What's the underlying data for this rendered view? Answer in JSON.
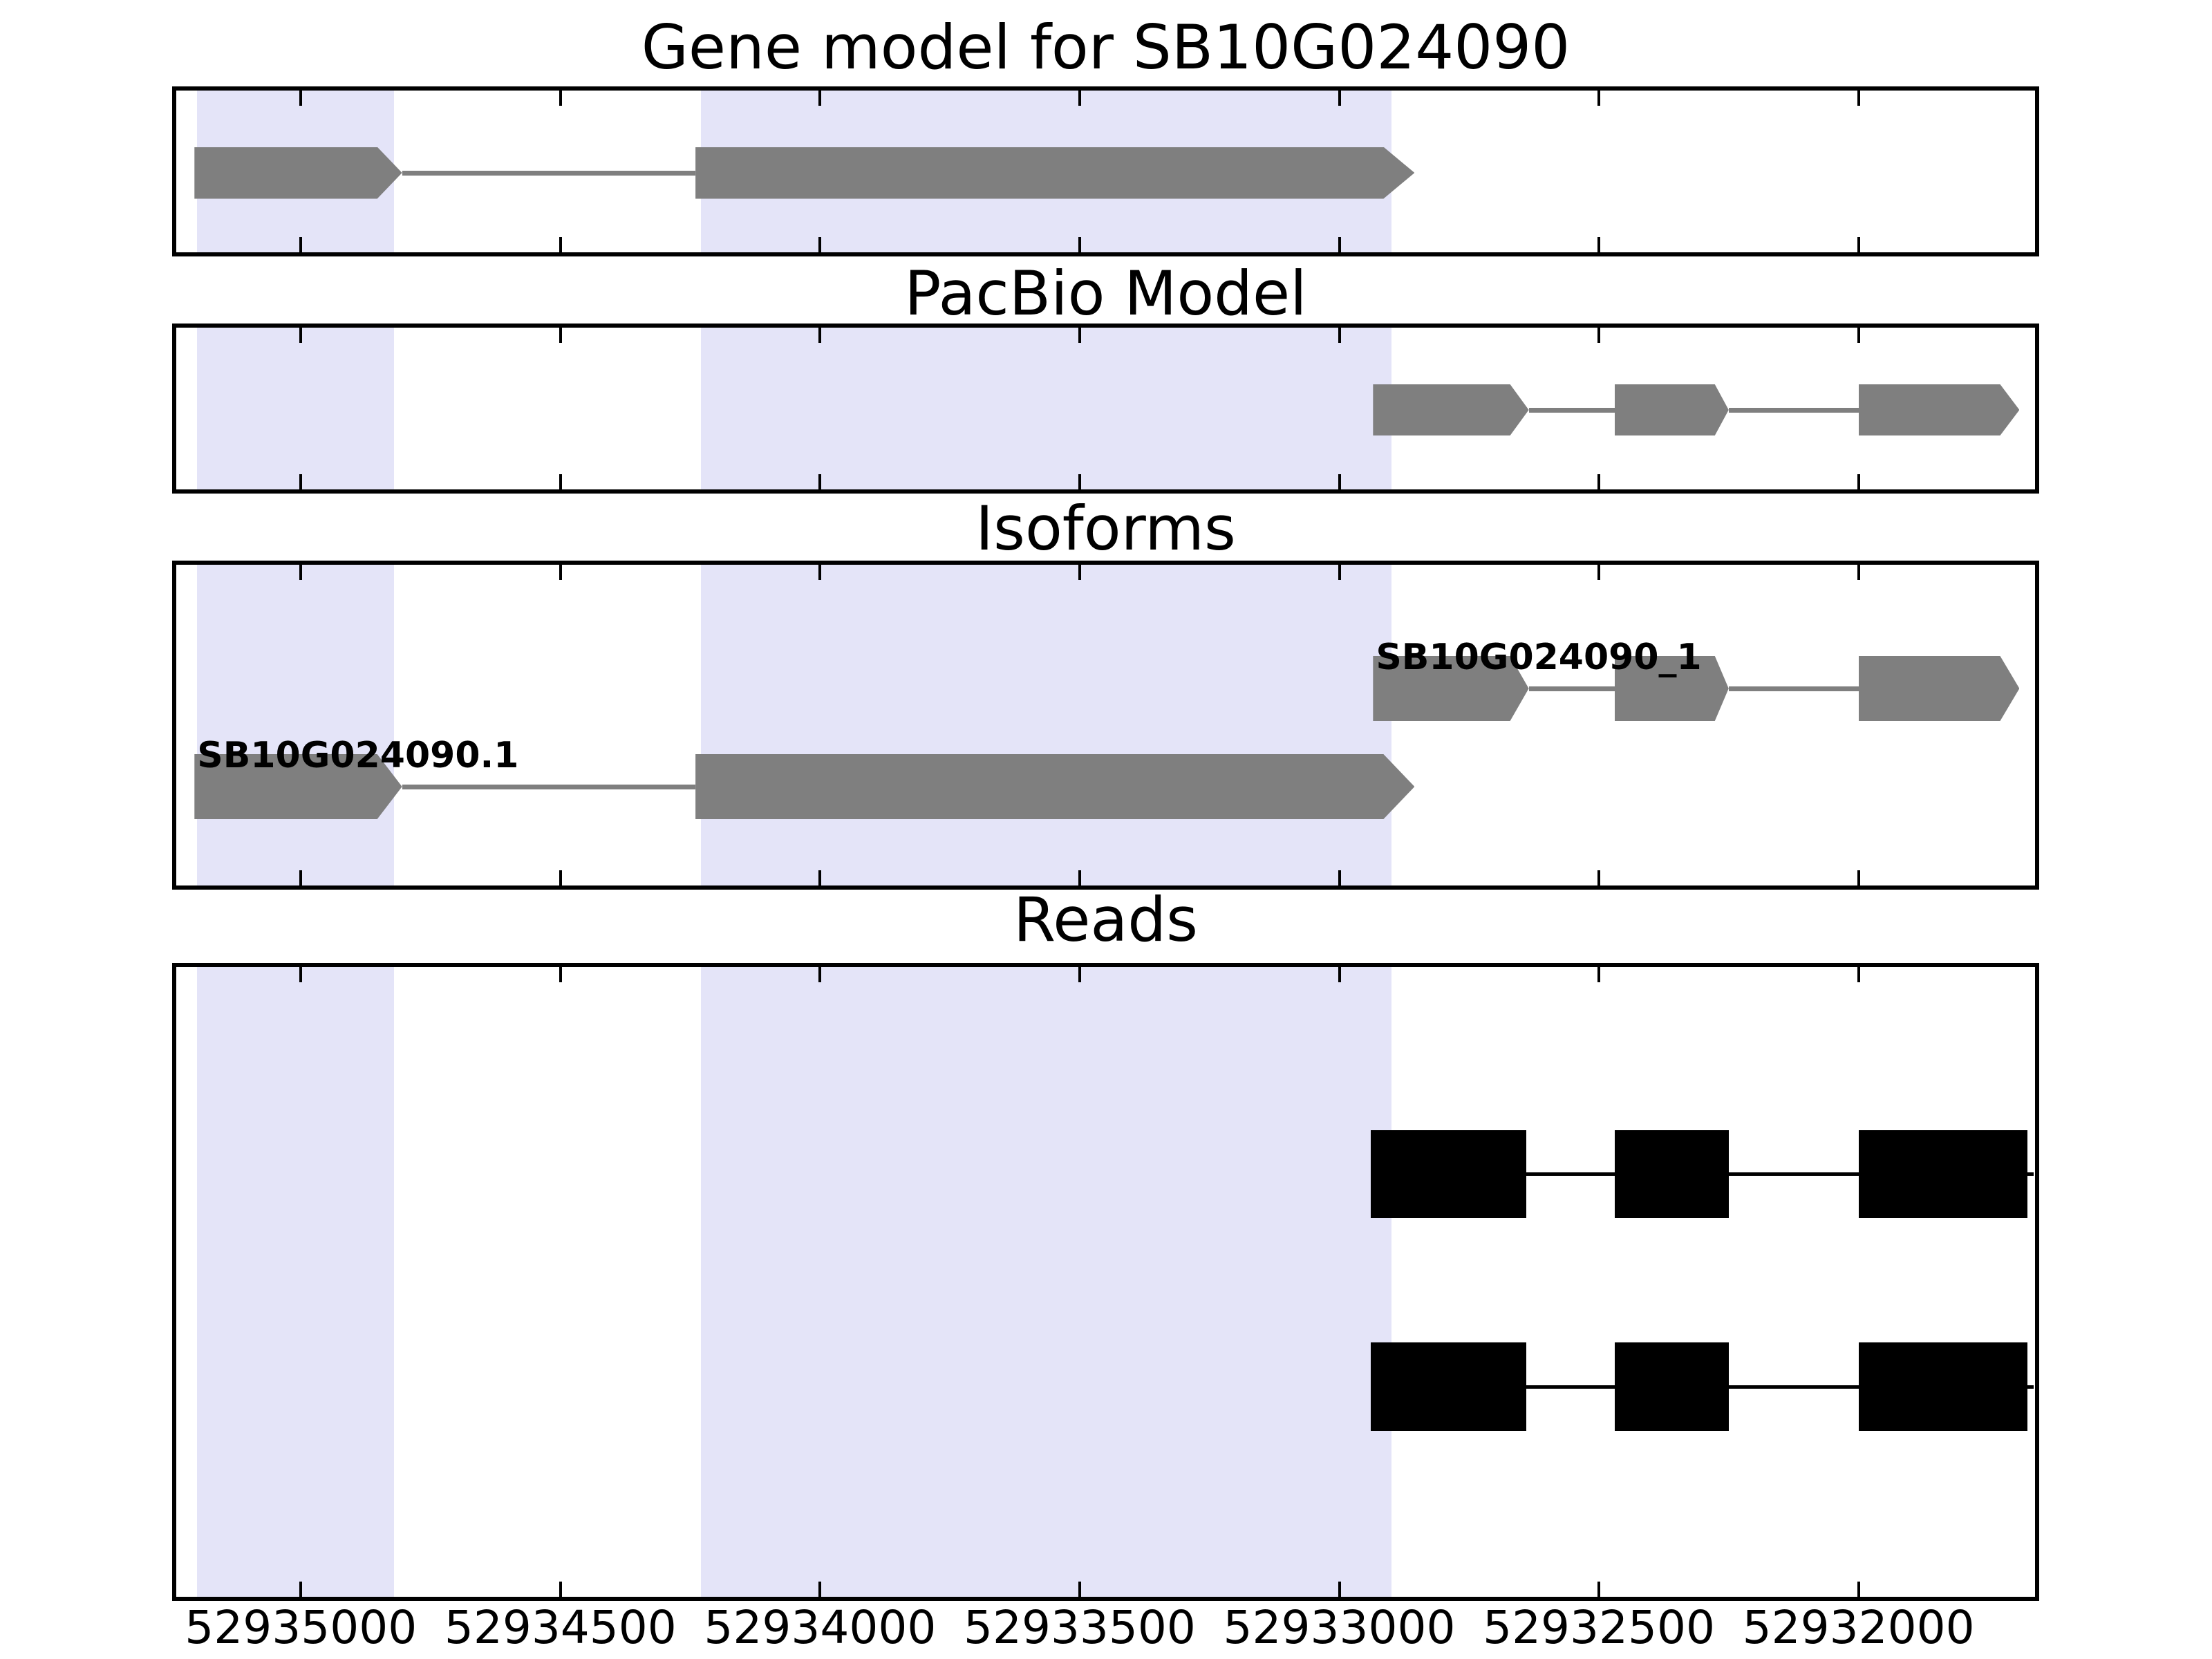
{
  "page": {
    "background": "#ffffff"
  },
  "chart_data": {
    "type": "genome-tracks",
    "figure_title": "Gene model for SB10G024090",
    "x_axis": {
      "unit": "bp",
      "direction": "decreasing-left-to-right",
      "left_bp": 52935240,
      "right_bp": 52931660,
      "tick_values": [
        52935000,
        52934500,
        52934000,
        52933500,
        52933000,
        52932500,
        52932000
      ],
      "tick_labels": [
        "52935000",
        "52934500",
        "52934000",
        "52933500",
        "52933000",
        "52932500",
        "52932000"
      ]
    },
    "highlight_color": "#e4e4f8",
    "highlight_regions_bp": [
      {
        "start": 52935200,
        "end": 52934820
      },
      {
        "start": 52934230,
        "end": 52932900
      }
    ],
    "feature_gray": "#7f7f7f",
    "read_black": "#000000",
    "tracks": [
      {
        "title": "Gene model for SB10G024090",
        "features": [
          {
            "label": "",
            "color": "#7f7f7f",
            "style": "arrow",
            "exons": [
              {
                "start": 52935205,
                "end": 52934805
              },
              {
                "start": 52934240,
                "end": 52932855
              }
            ]
          }
        ]
      },
      {
        "title": "PacBio Model",
        "features": [
          {
            "label": "",
            "color": "#7f7f7f",
            "style": "arrow",
            "exons": [
              {
                "start": 52932935,
                "end": 52932635
              },
              {
                "start": 52932470,
                "end": 52932250
              },
              {
                "start": 52932000,
                "end": 52931690
              }
            ]
          }
        ]
      },
      {
        "title": "Isoforms",
        "features": [
          {
            "label": "SB10G024090_1",
            "color": "#7f7f7f",
            "style": "arrow",
            "exons": [
              {
                "start": 52932935,
                "end": 52932635
              },
              {
                "start": 52932470,
                "end": 52932250
              },
              {
                "start": 52932000,
                "end": 52931690
              }
            ]
          },
          {
            "label": "SB10G024090.1",
            "color": "#7f7f7f",
            "style": "arrow",
            "exons": [
              {
                "start": 52935205,
                "end": 52934805
              },
              {
                "start": 52934240,
                "end": 52932855
              }
            ]
          }
        ]
      },
      {
        "title": "Reads",
        "features": [
          {
            "label": "",
            "color": "#000000",
            "style": "rect",
            "exons": [
              {
                "start": 52932940,
                "end": 52932640
              },
              {
                "start": 52932470,
                "end": 52932250
              },
              {
                "start": 52932000,
                "end": 52931675
              }
            ]
          },
          {
            "label": "",
            "color": "#000000",
            "style": "rect",
            "exons": [
              {
                "start": 52932940,
                "end": 52932640
              },
              {
                "start": 52932470,
                "end": 52932250
              },
              {
                "start": 52932000,
                "end": 52931675
              }
            ]
          }
        ]
      }
    ]
  }
}
